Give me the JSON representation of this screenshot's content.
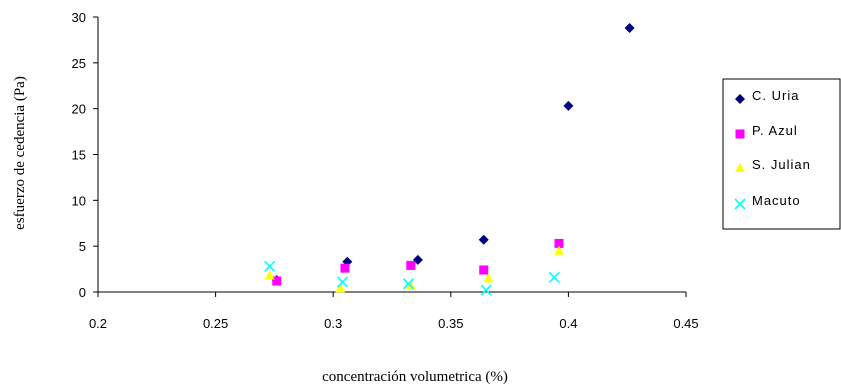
{
  "chart_data": {
    "type": "scatter",
    "title": "",
    "xlabel": "concentración volumetrica (%)",
    "ylabel": "esfuerzo de cedencia (Pa)",
    "xlim": [
      0.2,
      0.45
    ],
    "ylim": [
      0,
      30
    ],
    "x_ticks": [
      "0.2",
      "0.25",
      "0.3",
      "0.35",
      "0.4",
      "0.45"
    ],
    "y_ticks": [
      "0",
      "5",
      "10",
      "15",
      "20",
      "25",
      "30"
    ],
    "grid": false,
    "legend_position": "right",
    "series": [
      {
        "name": "C. Uria",
        "marker": "diamond",
        "color": "#000080",
        "x": [
          0.276,
          0.306,
          0.336,
          0.364,
          0.4,
          0.426
        ],
        "y": [
          1.3,
          3.3,
          3.5,
          5.7,
          20.3,
          28.8
        ]
      },
      {
        "name": "P. Azul",
        "marker": "square",
        "color": "#ff00ff",
        "x": [
          0.276,
          0.305,
          0.333,
          0.364,
          0.396
        ],
        "y": [
          1.2,
          2.6,
          2.9,
          2.4,
          5.3
        ]
      },
      {
        "name": "S. Julian",
        "marker": "triangle",
        "color": "#ffff00",
        "x": [
          0.273,
          0.303,
          0.333,
          0.366,
          0.396
        ],
        "y": [
          1.8,
          0.4,
          0.7,
          1.5,
          4.5
        ]
      },
      {
        "name": "Macuto",
        "marker": "x",
        "color": "#00ffff",
        "x": [
          0.273,
          0.304,
          0.332,
          0.365,
          0.394
        ],
        "y": [
          2.8,
          1.1,
          0.9,
          0.2,
          1.6
        ]
      }
    ]
  }
}
